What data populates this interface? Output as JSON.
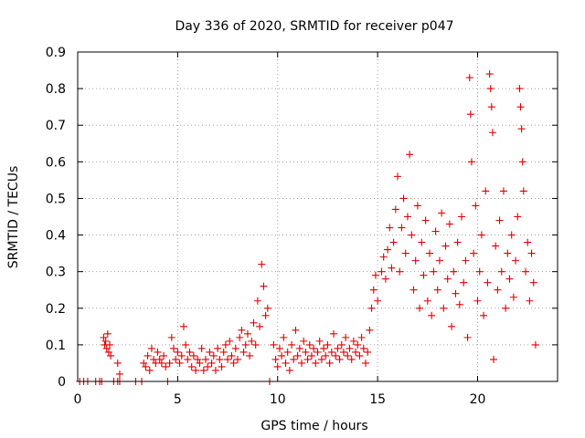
{
  "chart_data": {
    "type": "scatter",
    "title": "Day 336 of 2020, SRMTID for receiver p047",
    "xlabel": "GPS time / hours",
    "ylabel": "SRMTID / TECUs",
    "xlim": [
      0,
      24
    ],
    "ylim": [
      0,
      0.9
    ],
    "x_ticks": [
      0,
      5,
      10,
      15,
      20
    ],
    "x_tick_labels": [
      "0",
      "5",
      "10",
      "15",
      "20"
    ],
    "y_ticks": [
      0,
      0.1,
      0.2,
      0.3,
      0.4,
      0.5,
      0.6,
      0.7,
      0.8,
      0.9
    ],
    "y_tick_labels": [
      "0",
      "0.1",
      "0.2",
      "0.3",
      "0.4",
      "0.5",
      "0.6",
      "0.7",
      "0.8",
      "0.9"
    ],
    "grid": true,
    "marker": "plus",
    "marker_color": "#e00000",
    "series": [
      {
        "name": "SRMTID",
        "points": [
          [
            0.1,
            0.0
          ],
          [
            0.3,
            0.0
          ],
          [
            0.5,
            0.0
          ],
          [
            0.9,
            0.0
          ],
          [
            1.1,
            0.0
          ],
          [
            1.2,
            0.0
          ],
          [
            1.3,
            0.12
          ],
          [
            1.35,
            0.1
          ],
          [
            1.4,
            0.11
          ],
          [
            1.45,
            0.09
          ],
          [
            1.5,
            0.13
          ],
          [
            1.55,
            0.08
          ],
          [
            1.6,
            0.1
          ],
          [
            1.65,
            0.07
          ],
          [
            1.8,
            0.0
          ],
          [
            2.0,
            0.05
          ],
          [
            2.0,
            0.0
          ],
          [
            2.1,
            0.02
          ],
          [
            2.1,
            0.0
          ],
          [
            2.9,
            0.0
          ],
          [
            3.2,
            0.0
          ],
          [
            3.3,
            0.05
          ],
          [
            3.4,
            0.04
          ],
          [
            3.5,
            0.07
          ],
          [
            3.6,
            0.03
          ],
          [
            3.7,
            0.09
          ],
          [
            3.8,
            0.06
          ],
          [
            3.9,
            0.05
          ],
          [
            4.0,
            0.08
          ],
          [
            4.1,
            0.06
          ],
          [
            4.2,
            0.05
          ],
          [
            4.3,
            0.07
          ],
          [
            4.4,
            0.04
          ],
          [
            4.5,
            0.0
          ],
          [
            4.6,
            0.05
          ],
          [
            4.7,
            0.12
          ],
          [
            4.8,
            0.09
          ],
          [
            4.9,
            0.06
          ],
          [
            5.0,
            0.08
          ],
          [
            5.1,
            0.05
          ],
          [
            5.2,
            0.07
          ],
          [
            5.3,
            0.15
          ],
          [
            5.4,
            0.1
          ],
          [
            5.5,
            0.06
          ],
          [
            5.6,
            0.08
          ],
          [
            5.7,
            0.04
          ],
          [
            5.8,
            0.07
          ],
          [
            5.9,
            0.03
          ],
          [
            6.0,
            0.06
          ],
          [
            6.1,
            0.05
          ],
          [
            6.2,
            0.09
          ],
          [
            6.3,
            0.03
          ],
          [
            6.4,
            0.06
          ],
          [
            6.5,
            0.04
          ],
          [
            6.6,
            0.08
          ],
          [
            6.7,
            0.05
          ],
          [
            6.8,
            0.07
          ],
          [
            6.9,
            0.03
          ],
          [
            7.0,
            0.09
          ],
          [
            7.1,
            0.06
          ],
          [
            7.2,
            0.04
          ],
          [
            7.3,
            0.08
          ],
          [
            7.4,
            0.1
          ],
          [
            7.5,
            0.06
          ],
          [
            7.6,
            0.11
          ],
          [
            7.7,
            0.07
          ],
          [
            7.8,
            0.05
          ],
          [
            7.9,
            0.09
          ],
          [
            8.0,
            0.06
          ],
          [
            8.1,
            0.12
          ],
          [
            8.2,
            0.14
          ],
          [
            8.3,
            0.08
          ],
          [
            8.4,
            0.1
          ],
          [
            8.5,
            0.13
          ],
          [
            8.6,
            0.07
          ],
          [
            8.7,
            0.11
          ],
          [
            8.8,
            0.16
          ],
          [
            8.9,
            0.1
          ],
          [
            9.0,
            0.22
          ],
          [
            9.1,
            0.15
          ],
          [
            9.2,
            0.32
          ],
          [
            9.3,
            0.26
          ],
          [
            9.4,
            0.18
          ],
          [
            9.5,
            0.2
          ],
          [
            9.6,
            0.0
          ],
          [
            9.8,
            0.1
          ],
          [
            9.9,
            0.06
          ],
          [
            10.0,
            0.04
          ],
          [
            10.1,
            0.09
          ],
          [
            10.2,
            0.07
          ],
          [
            10.3,
            0.12
          ],
          [
            10.4,
            0.05
          ],
          [
            10.5,
            0.08
          ],
          [
            10.6,
            0.03
          ],
          [
            10.7,
            0.1
          ],
          [
            10.8,
            0.06
          ],
          [
            10.9,
            0.14
          ],
          [
            11.0,
            0.07
          ],
          [
            11.1,
            0.09
          ],
          [
            11.2,
            0.05
          ],
          [
            11.3,
            0.11
          ],
          [
            11.4,
            0.08
          ],
          [
            11.5,
            0.06
          ],
          [
            11.6,
            0.1
          ],
          [
            11.7,
            0.07
          ],
          [
            11.8,
            0.09
          ],
          [
            11.9,
            0.05
          ],
          [
            12.0,
            0.08
          ],
          [
            12.1,
            0.11
          ],
          [
            12.2,
            0.06
          ],
          [
            12.3,
            0.09
          ],
          [
            12.4,
            0.07
          ],
          [
            12.5,
            0.1
          ],
          [
            12.6,
            0.05
          ],
          [
            12.7,
            0.08
          ],
          [
            12.8,
            0.13
          ],
          [
            12.9,
            0.07
          ],
          [
            13.0,
            0.09
          ],
          [
            13.1,
            0.06
          ],
          [
            13.2,
            0.1
          ],
          [
            13.3,
            0.08
          ],
          [
            13.4,
            0.12
          ],
          [
            13.5,
            0.07
          ],
          [
            13.6,
            0.09
          ],
          [
            13.7,
            0.06
          ],
          [
            13.8,
            0.11
          ],
          [
            13.9,
            0.08
          ],
          [
            14.0,
            0.1
          ],
          [
            14.1,
            0.07
          ],
          [
            14.2,
            0.12
          ],
          [
            14.3,
            0.09
          ],
          [
            14.4,
            0.05
          ],
          [
            14.5,
            0.08
          ],
          [
            14.6,
            0.14
          ],
          [
            14.7,
            0.2
          ],
          [
            14.8,
            0.25
          ],
          [
            14.9,
            0.29
          ],
          [
            15.0,
            0.22
          ],
          [
            15.2,
            0.3
          ],
          [
            15.3,
            0.34
          ],
          [
            15.4,
            0.28
          ],
          [
            15.5,
            0.36
          ],
          [
            15.6,
            0.42
          ],
          [
            15.7,
            0.31
          ],
          [
            15.8,
            0.38
          ],
          [
            15.9,
            0.47
          ],
          [
            16.0,
            0.56
          ],
          [
            16.1,
            0.3
          ],
          [
            16.2,
            0.42
          ],
          [
            16.3,
            0.5
          ],
          [
            16.4,
            0.35
          ],
          [
            16.5,
            0.45
          ],
          [
            16.6,
            0.62
          ],
          [
            16.7,
            0.4
          ],
          [
            16.8,
            0.25
          ],
          [
            16.9,
            0.33
          ],
          [
            17.0,
            0.48
          ],
          [
            17.1,
            0.2
          ],
          [
            17.2,
            0.38
          ],
          [
            17.3,
            0.29
          ],
          [
            17.4,
            0.44
          ],
          [
            17.5,
            0.22
          ],
          [
            17.6,
            0.35
          ],
          [
            17.7,
            0.18
          ],
          [
            17.8,
            0.3
          ],
          [
            17.9,
            0.41
          ],
          [
            18.0,
            0.25
          ],
          [
            18.1,
            0.33
          ],
          [
            18.2,
            0.46
          ],
          [
            18.3,
            0.2
          ],
          [
            18.4,
            0.37
          ],
          [
            18.5,
            0.28
          ],
          [
            18.6,
            0.43
          ],
          [
            18.7,
            0.15
          ],
          [
            18.8,
            0.3
          ],
          [
            18.9,
            0.24
          ],
          [
            19.0,
            0.38
          ],
          [
            19.1,
            0.21
          ],
          [
            19.2,
            0.45
          ],
          [
            19.3,
            0.27
          ],
          [
            19.4,
            0.33
          ],
          [
            19.5,
            0.12
          ],
          [
            19.6,
            0.83
          ],
          [
            19.65,
            0.73
          ],
          [
            19.7,
            0.6
          ],
          [
            19.8,
            0.35
          ],
          [
            19.9,
            0.48
          ],
          [
            20.0,
            0.22
          ],
          [
            20.1,
            0.3
          ],
          [
            20.2,
            0.4
          ],
          [
            20.3,
            0.18
          ],
          [
            20.4,
            0.52
          ],
          [
            20.5,
            0.27
          ],
          [
            20.6,
            0.84
          ],
          [
            20.65,
            0.8
          ],
          [
            20.7,
            0.75
          ],
          [
            20.75,
            0.68
          ],
          [
            20.8,
            0.06
          ],
          [
            20.9,
            0.37
          ],
          [
            21.0,
            0.25
          ],
          [
            21.1,
            0.44
          ],
          [
            21.2,
            0.3
          ],
          [
            21.3,
            0.52
          ],
          [
            21.4,
            0.2
          ],
          [
            21.5,
            0.35
          ],
          [
            21.6,
            0.28
          ],
          [
            21.7,
            0.4
          ],
          [
            21.8,
            0.23
          ],
          [
            21.9,
            0.33
          ],
          [
            22.0,
            0.45
          ],
          [
            22.1,
            0.8
          ],
          [
            22.15,
            0.75
          ],
          [
            22.2,
            0.69
          ],
          [
            22.25,
            0.6
          ],
          [
            22.3,
            0.52
          ],
          [
            22.4,
            0.3
          ],
          [
            22.5,
            0.38
          ],
          [
            22.6,
            0.22
          ],
          [
            22.7,
            0.35
          ],
          [
            22.8,
            0.27
          ],
          [
            22.9,
            0.1
          ]
        ]
      }
    ]
  }
}
